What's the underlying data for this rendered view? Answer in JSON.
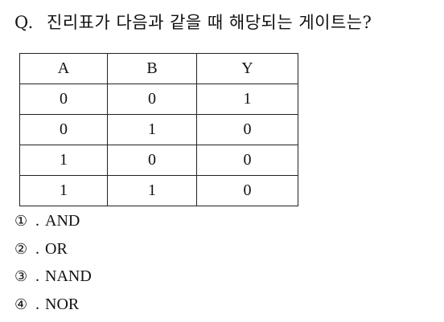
{
  "question": {
    "label": "Q.",
    "text": "진리표가 다음과 같을 때 해당되는 게이트는?"
  },
  "truth_table": {
    "headers": [
      "A",
      "B",
      "Y"
    ],
    "rows": [
      [
        "0",
        "0",
        "1"
      ],
      [
        "0",
        "1",
        "0"
      ],
      [
        "1",
        "0",
        "0"
      ],
      [
        "1",
        "1",
        "0"
      ]
    ]
  },
  "options": [
    {
      "number": "①",
      "text": "AND"
    },
    {
      "number": "②",
      "text": "OR"
    },
    {
      "number": "③",
      "text": "NAND"
    },
    {
      "number": "④",
      "text": "NOR"
    }
  ],
  "separator": "."
}
